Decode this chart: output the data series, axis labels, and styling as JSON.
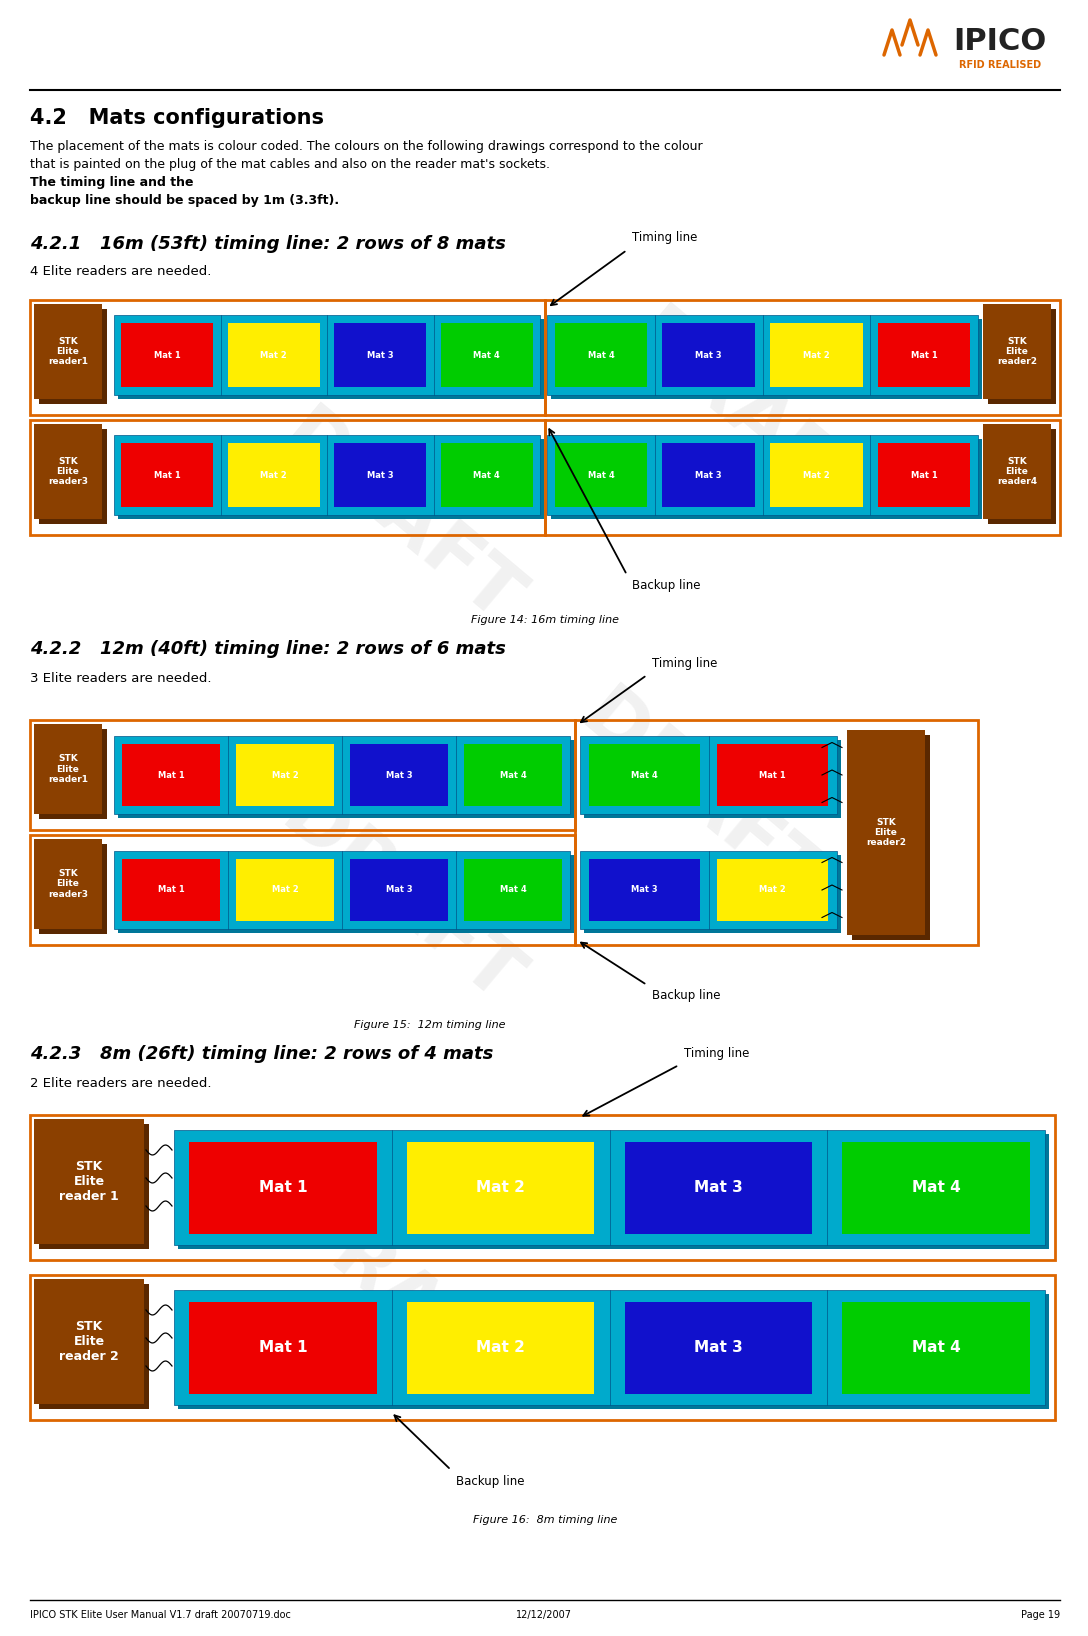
{
  "title_42": "4.2   Mats configurations",
  "body_normal": "The placement of the mats is colour coded. The colours on the following drawings correspond to the colour\nthat is painted on the plug of the mat cables and also on the reader mat’s sockets. ",
  "body_bold_end": "The timing line and the\nbackup line should be spaced by 1m (3.3ft).",
  "title_421": "4.2.1   16m (53ft) timing line: 2 rows of 8 mats",
  "sub_421": "4 Elite readers are needed.",
  "title_422": "4.2.2   12m (40ft) timing line: 2 rows of 6 mats",
  "sub_422": "3 Elite readers are needed.",
  "title_423": "4.2.3   8m (26ft) timing line: 2 rows of 4 mats",
  "sub_423": "2 Elite readers are needed.",
  "cap_14": "Figure 14: 16m timing line",
  "cap_15": "Figure 15:  12m timing line",
  "cap_16": "Figure 16:  8m timing line",
  "timing_label": "Timing line",
  "backup_label": "Backup line",
  "footer_l": "IPICO STK Elite User Manual V1.7 draft 20070719.doc",
  "footer_c": "12/12/2007",
  "footer_r": "Page 19",
  "col_reader": "#8B4000",
  "col_reader_dark": "#5A2800",
  "col_strip": "#00AACC",
  "col_strip_dark": "#007799",
  "col_mat1": "#EE0000",
  "col_mat2": "#FFEE00",
  "col_mat3": "#1111CC",
  "col_mat4": "#00CC00",
  "col_orange": "#DD6600",
  "col_black": "#000000",
  "col_white": "#FFFFFF",
  "col_gray_wm": "#CCCCCC",
  "bg": "#FFFFFF"
}
